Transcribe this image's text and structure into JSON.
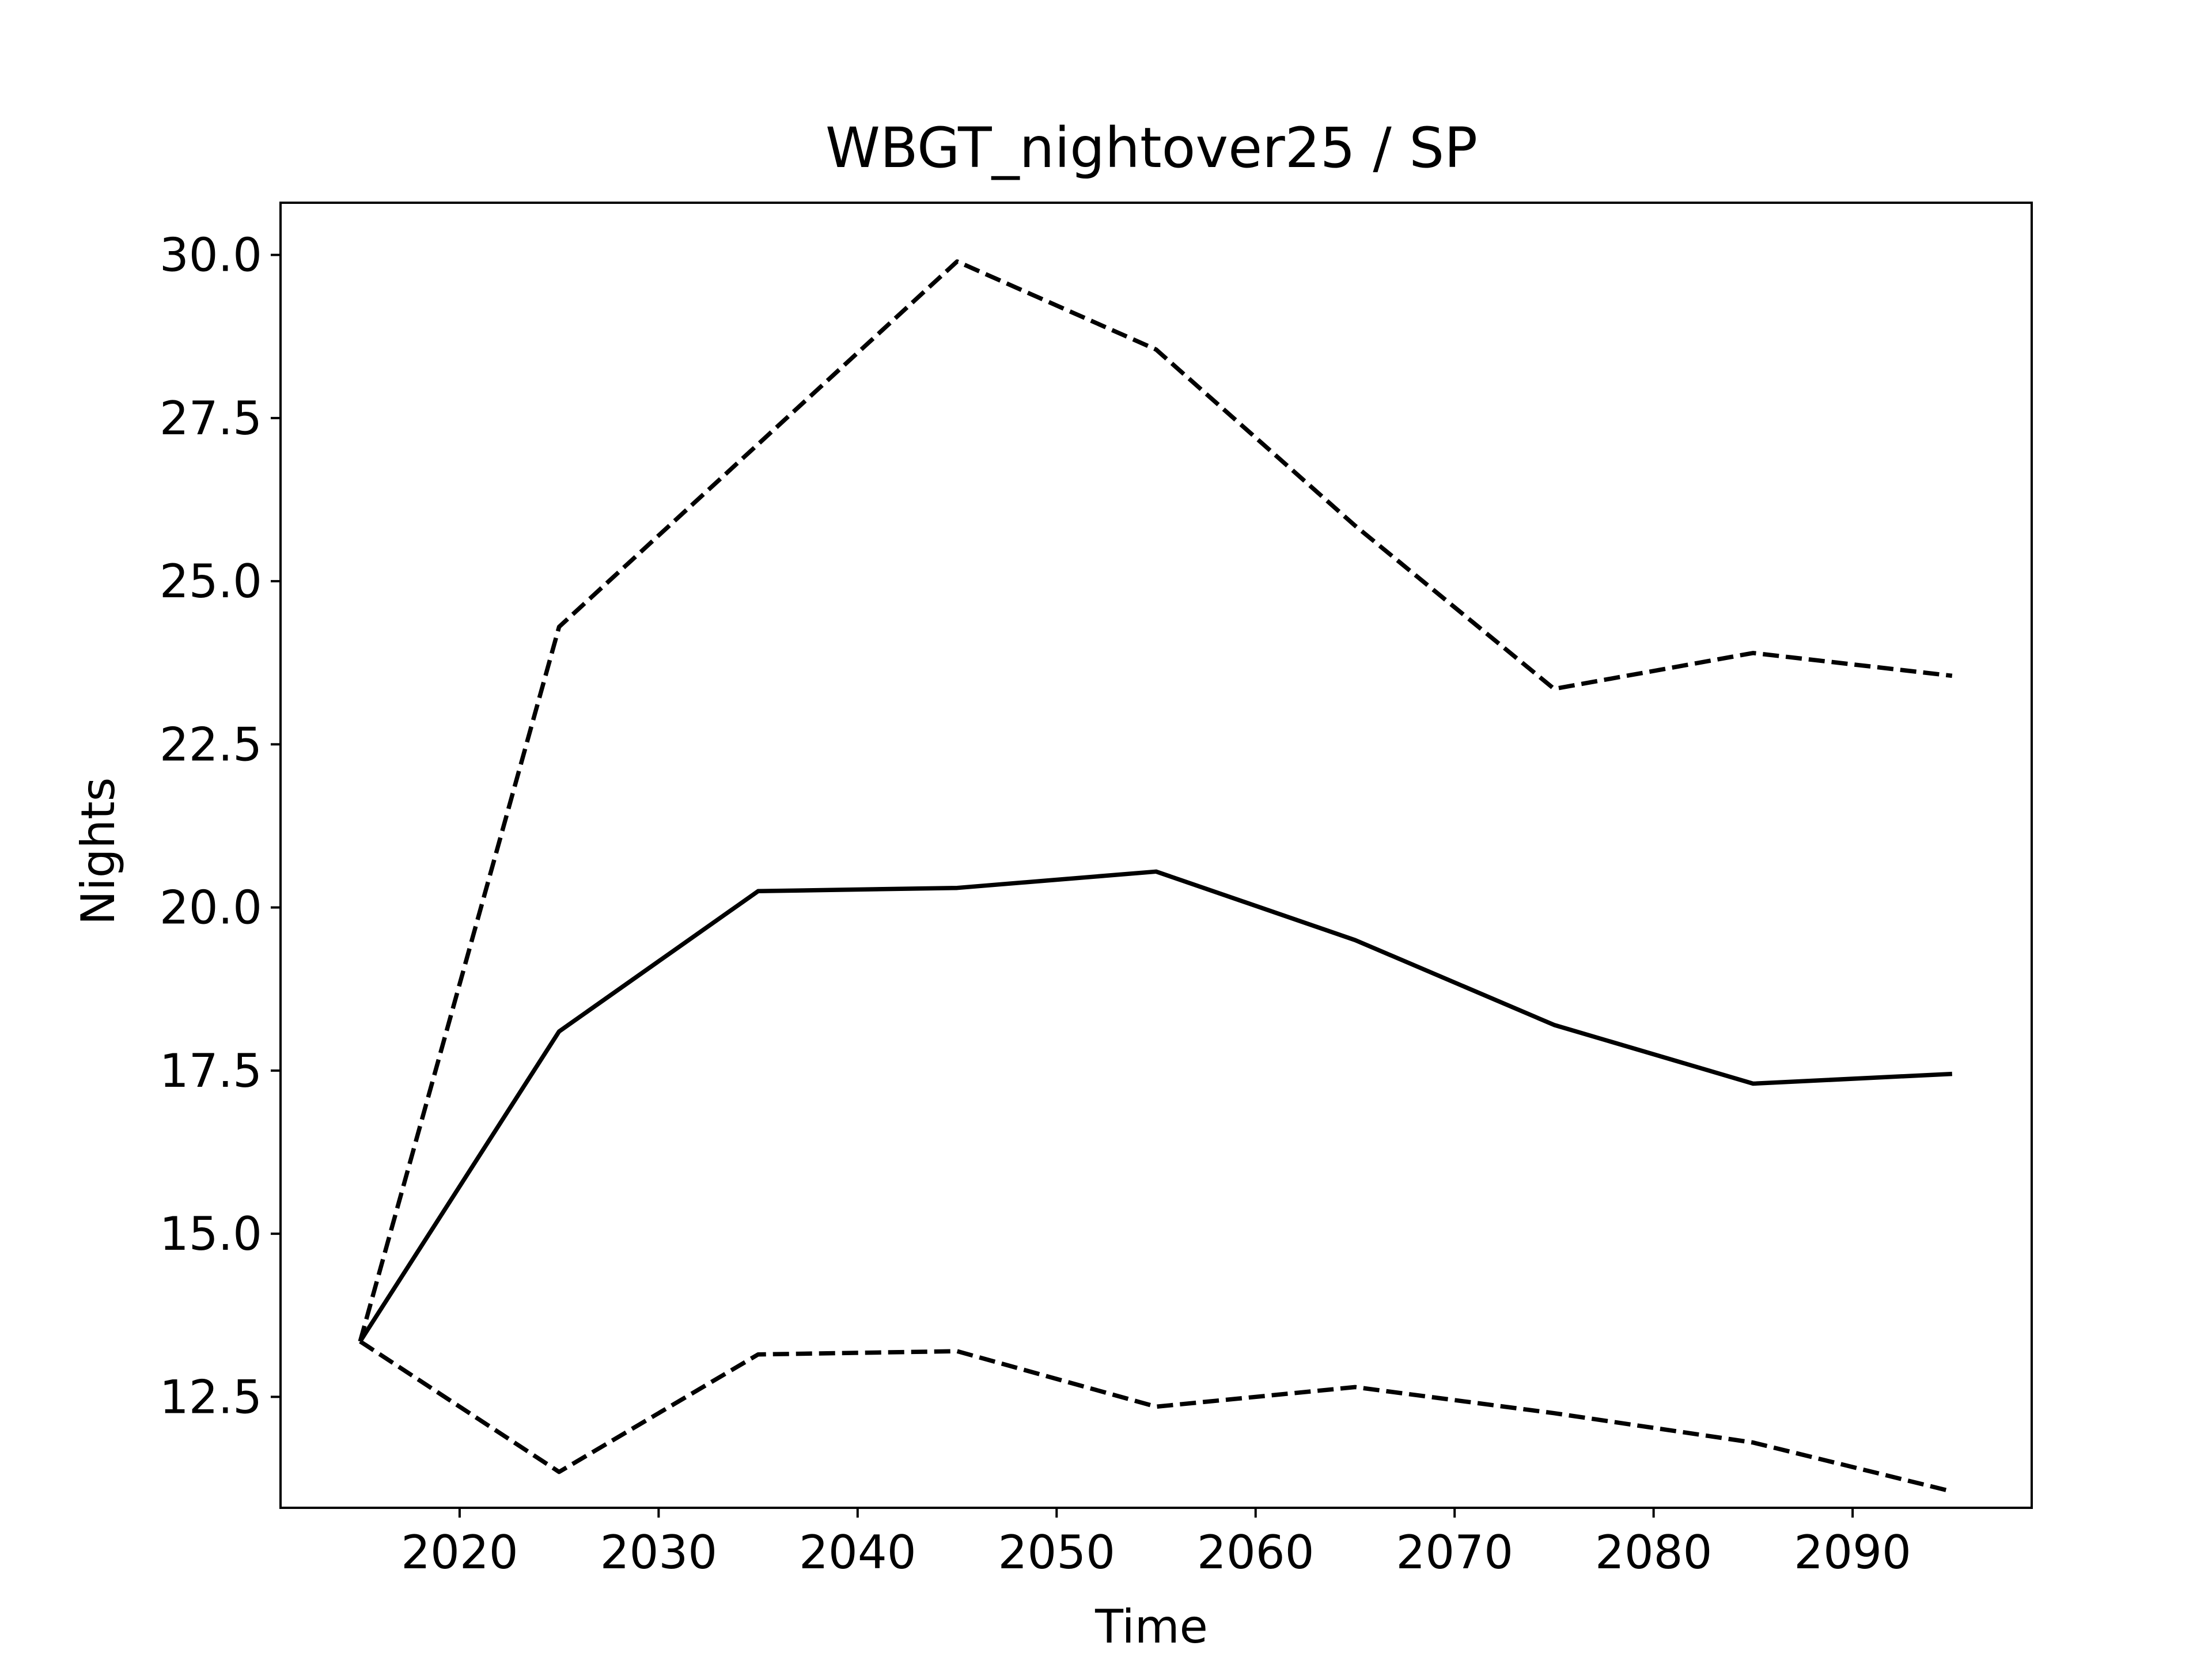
{
  "chart_data": {
    "type": "line",
    "title": "WBGT_nightover25 / SP",
    "xlabel": "Time",
    "ylabel": "Nights",
    "x": [
      2015,
      2025,
      2035,
      2045,
      2055,
      2065,
      2075,
      2085,
      2095
    ],
    "xlim": [
      2011,
      2099
    ],
    "ylim": [
      10.8,
      30.8
    ],
    "xticks": [
      2020,
      2030,
      2040,
      2050,
      2060,
      2070,
      2080,
      2090
    ],
    "xtick_labels": [
      "2020",
      "2030",
      "2040",
      "2050",
      "2060",
      "2070",
      "2080",
      "2090"
    ],
    "yticks": [
      12.5,
      15.0,
      17.5,
      20.0,
      22.5,
      25.0,
      27.5,
      30.0
    ],
    "ytick_labels": [
      "12.5",
      "15.0",
      "17.5",
      "20.0",
      "22.5",
      "25.0",
      "27.5",
      "30.0"
    ],
    "grid": false,
    "series": [
      {
        "style": "solid",
        "color": "#000000",
        "values": [
          13.35,
          18.1,
          20.25,
          20.3,
          20.55,
          19.5,
          18.2,
          17.3,
          17.45
        ]
      },
      {
        "style": "dashed",
        "color": "#000000",
        "values": [
          13.35,
          24.3,
          27.1,
          29.9,
          28.55,
          25.85,
          23.35,
          23.9,
          23.55
        ]
      },
      {
        "style": "dashed",
        "color": "#000000",
        "values": [
          13.35,
          11.35,
          13.15,
          13.2,
          12.35,
          12.65,
          12.25,
          11.8,
          11.05
        ]
      }
    ]
  }
}
